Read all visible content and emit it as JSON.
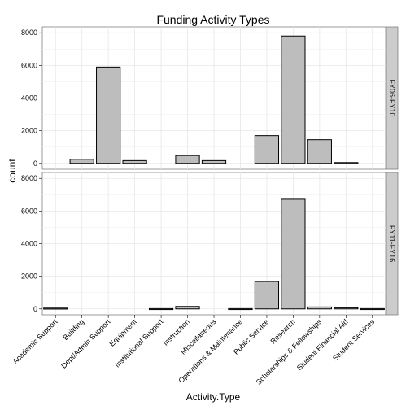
{
  "chart_data": {
    "type": "bar",
    "title": "Funding Activity Types",
    "xlabel": "Activity.Type",
    "ylabel": "count",
    "categories": [
      "Academic Support",
      "Building",
      "Dept/Admin Support",
      "Equipment",
      "Institutional Support",
      "Instruction",
      "Miscellaneous",
      "Operations & Maintenance",
      "Public Service",
      "Research",
      "Scholarships & Fellowships",
      "Student Financial Aid",
      "Student Services"
    ],
    "ylim": [
      0,
      8000
    ],
    "yticks": [
      0,
      2000,
      4000,
      6000,
      8000
    ],
    "facets": [
      {
        "label": "FY06-FY10",
        "values": [
          null,
          250,
          5900,
          170,
          null,
          480,
          170,
          null,
          1700,
          7800,
          1450,
          50,
          null
        ]
      },
      {
        "label": "FY11-FY16",
        "values": [
          50,
          null,
          null,
          null,
          20,
          150,
          null,
          20,
          1680,
          6720,
          120,
          70,
          20
        ]
      }
    ],
    "grid": true,
    "legend": "none"
  }
}
